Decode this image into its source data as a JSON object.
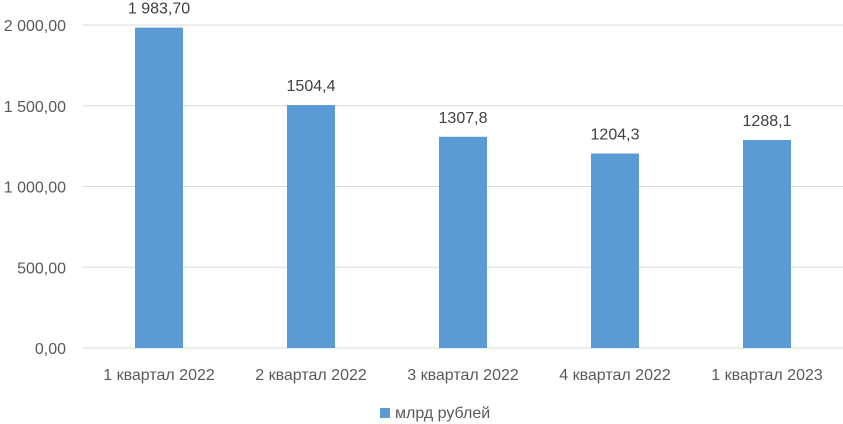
{
  "chart_data": {
    "type": "bar",
    "categories": [
      "1 квартал 2022",
      "2 квартал 2022",
      "3 квартал 2022",
      "4 квартал 2022",
      "1 квартал 2023"
    ],
    "series": [
      {
        "name": "млрд рублей",
        "values": [
          1983.7,
          1504.4,
          1307.8,
          1204.3,
          1288.1
        ],
        "data_labels": [
          "1 983,70",
          "1504,4",
          "1307,8",
          "1204,3",
          "1288,1"
        ],
        "color": "#5b9bd5"
      }
    ],
    "ylim": [
      0,
      2000
    ],
    "yticks": [
      0,
      500,
      1000,
      1500,
      2000
    ],
    "ytick_labels": [
      "0,00",
      "500,00",
      "1 000,00",
      "1 500,00",
      "2 000,00"
    ],
    "grid": true,
    "gridline_color": "#d9d9d9",
    "legend_position": "bottom"
  }
}
